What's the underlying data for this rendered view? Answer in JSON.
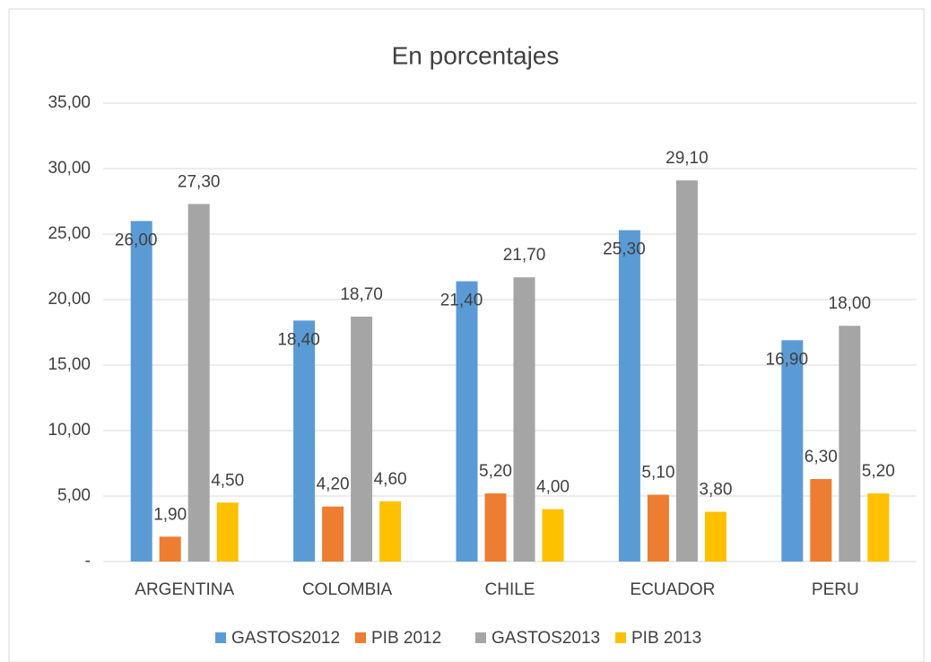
{
  "chart_data": {
    "type": "bar",
    "title": "En porcentajes",
    "categories": [
      "ARGENTINA",
      "COLOMBIA",
      "CHILE",
      "ECUADOR",
      "PERU"
    ],
    "series": [
      {
        "name": "GASTOS2012",
        "color": "#5b9bd5",
        "values": [
          26.0,
          18.4,
          21.4,
          25.3,
          16.9
        ],
        "value_labels": [
          "26,00",
          "18,40",
          "21,40",
          "25,30",
          "16,90"
        ]
      },
      {
        "name": "PIB 2012",
        "color": "#ed7d31",
        "values": [
          1.9,
          4.2,
          5.2,
          5.1,
          6.3
        ],
        "value_labels": [
          "1,90",
          "4,20",
          "5,20",
          "5,10",
          "6,30"
        ]
      },
      {
        "name": "GASTOS2013",
        "color": "#a5a5a5",
        "values": [
          27.3,
          18.7,
          21.7,
          29.1,
          18.0
        ],
        "value_labels": [
          "27,30",
          "18,70",
          "21,70",
          "29,10",
          "18,00"
        ]
      },
      {
        "name": "PIB 2013",
        "color": "#ffc000",
        "values": [
          4.5,
          4.6,
          4.0,
          3.8,
          5.2
        ],
        "value_labels": [
          "4,50",
          "4,60",
          "4,00",
          "3,80",
          "5,20"
        ]
      }
    ],
    "ylim": [
      0,
      35
    ],
    "yticks": [
      {
        "value": 0,
        "label": "-"
      },
      {
        "value": 5,
        "label": "5,00"
      },
      {
        "value": 10,
        "label": "10,00"
      },
      {
        "value": 15,
        "label": "15,00"
      },
      {
        "value": 20,
        "label": "20,00"
      },
      {
        "value": 25,
        "label": "25,00"
      },
      {
        "value": 30,
        "label": "30,00"
      },
      {
        "value": 35,
        "label": "35,00"
      }
    ],
    "grid": true,
    "legend": "bottom"
  }
}
